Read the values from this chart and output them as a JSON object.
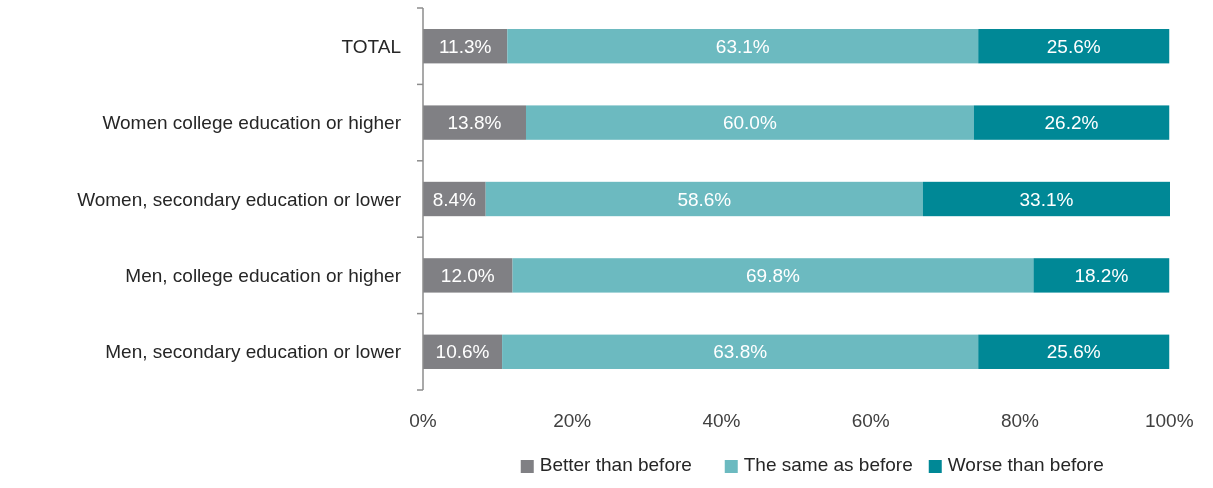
{
  "chart_data": {
    "type": "bar",
    "orientation": "horizontal",
    "stacked": true,
    "categories": [
      "TOTAL",
      "Women college education or higher",
      "Women, secondary education or lower",
      "Men, college education or higher",
      "Men, secondary education or lower"
    ],
    "series": [
      {
        "name": "Better than before",
        "color": "#808084",
        "values": [
          11.3,
          13.8,
          8.4,
          12.0,
          10.6
        ],
        "value_labels": [
          "11.3%",
          "13.8%",
          "8.4%",
          "12.0%",
          "10.6%"
        ]
      },
      {
        "name": "The same as before",
        "color": "#6cbac0",
        "values": [
          63.1,
          60.0,
          58.6,
          69.8,
          63.8
        ],
        "value_labels": [
          "63.1%",
          "60.0%",
          "58.6%",
          "69.8%",
          "63.8%"
        ]
      },
      {
        "name": "Worse than before",
        "color": "#008896",
        "values": [
          25.6,
          26.2,
          33.1,
          18.2,
          25.6
        ],
        "value_labels": [
          "25.6%",
          "26.2%",
          "33.1%",
          "18.2%",
          "25.6%"
        ]
      }
    ],
    "xlim": [
      0,
      100.1
    ],
    "xticks": [
      {
        "value": 0,
        "label": "0%"
      },
      {
        "value": 20,
        "label": "20%"
      },
      {
        "value": 40,
        "label": "40%"
      },
      {
        "value": 60,
        "label": "60%"
      },
      {
        "value": 80,
        "label": "80%"
      },
      {
        "value": 100,
        "label": "100%"
      }
    ],
    "grid": false,
    "legend": "bottom"
  }
}
